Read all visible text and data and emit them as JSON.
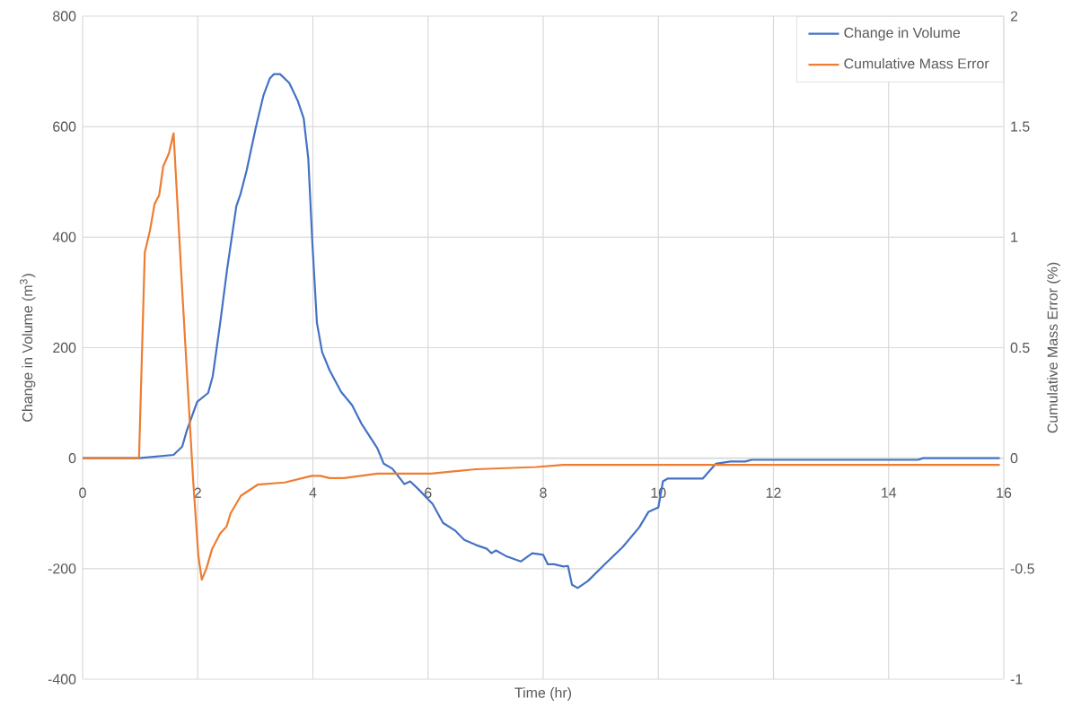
{
  "chart_data": {
    "type": "line",
    "xlabel": "Time (hr)",
    "ylabel": "Change in Volume (m$^{3}$)",
    "y2label": "Cumulative Mass Error (%)",
    "xlim": [
      0,
      16
    ],
    "xticks": [
      0,
      2,
      4,
      6,
      8,
      10,
      12,
      14,
      16
    ],
    "ylim": [
      -400,
      800
    ],
    "yticks": [
      -400,
      -200,
      0,
      200,
      400,
      600,
      800
    ],
    "y2lim": [
      -1,
      2
    ],
    "y2ticks": [
      -1,
      -0.5,
      0,
      0.5,
      1,
      1.5,
      2
    ],
    "grid": true,
    "legend": "top right",
    "marker": "none",
    "line_style": "solid",
    "series": [
      {
        "name": "Change in Volume",
        "color": "#4472c4",
        "axis": "y",
        "x": [
          0,
          0.98,
          1.58,
          1.73,
          1.81,
          1.99,
          2.18,
          2.26,
          2.39,
          2.51,
          2.67,
          2.74,
          2.85,
          3.01,
          3.14,
          3.25,
          3.32,
          3.43,
          3.59,
          3.74,
          3.84,
          3.92,
          3.99,
          4.07,
          4.16,
          4.29,
          4.49,
          4.68,
          4.84,
          5.12,
          5.23,
          5.38,
          5.59,
          5.69,
          5.85,
          6.08,
          6.26,
          6.47,
          6.63,
          6.83,
          7.02,
          7.1,
          7.18,
          7.35,
          7.61,
          7.81,
          8.0,
          8.08,
          8.19,
          8.35,
          8.43,
          8.5,
          8.6,
          8.78,
          9.06,
          9.38,
          9.67,
          9.83,
          10.0,
          10.08,
          10.16,
          10.77,
          11.0,
          11.25,
          11.51,
          11.62,
          14.51,
          14.6,
          15.93
        ],
        "values": [
          0,
          0,
          6,
          21,
          50,
          102,
          118,
          148,
          245,
          342,
          456,
          477,
          521,
          599,
          656,
          687,
          695,
          695,
          679,
          646,
          615,
          542,
          391,
          245,
          192,
          159,
          120,
          96,
          63,
          18,
          -10,
          -19,
          -47,
          -42,
          -58,
          -83,
          -117,
          -131,
          -148,
          -157,
          -164,
          -172,
          -167,
          -177,
          -187,
          -172,
          -175,
          -192,
          -192,
          -196,
          -195,
          -229,
          -235,
          -222,
          -193,
          -161,
          -125,
          -97,
          -89,
          -42,
          -37,
          -37,
          -10,
          -6,
          -6,
          -3,
          -3,
          0,
          0
        ]
      },
      {
        "name": "Cumulative Mass Error",
        "color": "#ed7d31",
        "axis": "y2",
        "x": [
          0,
          0.98,
          1.08,
          1.17,
          1.25,
          1.33,
          1.4,
          1.5,
          1.58,
          1.73,
          1.92,
          2.01,
          2.07,
          2.15,
          2.25,
          2.39,
          2.5,
          2.57,
          2.75,
          3.04,
          3.51,
          3.98,
          4.13,
          4.29,
          4.54,
          5.12,
          5.27,
          6.05,
          6.83,
          7.88,
          8.35,
          15.93
        ],
        "values": [
          0,
          0,
          0.93,
          1.03,
          1.15,
          1.19,
          1.32,
          1.38,
          1.47,
          0.76,
          -0.1,
          -0.44,
          -0.55,
          -0.5,
          -0.41,
          -0.34,
          -0.31,
          -0.25,
          -0.17,
          -0.12,
          -0.11,
          -0.08,
          -0.08,
          -0.09,
          -0.09,
          -0.07,
          -0.07,
          -0.07,
          -0.05,
          -0.04,
          -0.03,
          -0.03
        ]
      }
    ]
  }
}
